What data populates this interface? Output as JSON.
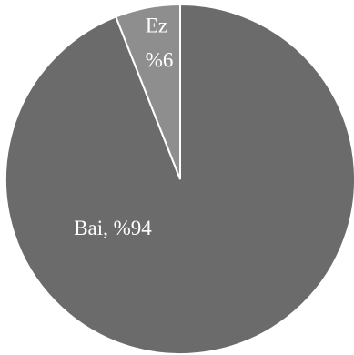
{
  "chart_data": {
    "type": "pie",
    "categories": [
      "Bai",
      "Ez"
    ],
    "values": [
      94,
      6
    ],
    "value_labels": [
      "%94",
      "%6"
    ],
    "label_separator": ", ",
    "colors": [
      "#6b6b6b",
      "#8e8e8e"
    ]
  }
}
